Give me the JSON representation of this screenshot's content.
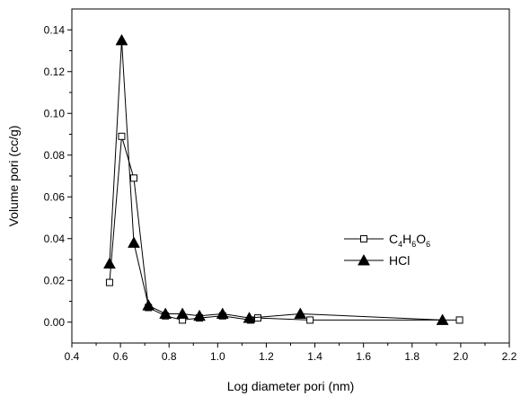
{
  "chart_data": {
    "type": "line",
    "xlabel": "Log diameter pori (nm)",
    "ylabel": "Volume pori (cc/g)",
    "xlim": [
      0.4,
      2.2
    ],
    "ylim": [
      -0.01,
      0.15
    ],
    "xticks": [
      0.4,
      0.6,
      0.8,
      1.0,
      1.2,
      1.4,
      1.6,
      1.8,
      2.0,
      2.2
    ],
    "xtick_labels": [
      "0.4",
      "0.6",
      "0.8",
      "1.0",
      "1.2",
      "1.4",
      "1.6",
      "1.8",
      "2.0",
      "2.2"
    ],
    "yticks": [
      0.0,
      0.02,
      0.04,
      0.06,
      0.08,
      0.1,
      0.12,
      0.14
    ],
    "ytick_labels": [
      "0.00",
      "0.02",
      "0.04",
      "0.06",
      "0.08",
      "0.10",
      "0.12",
      "0.14"
    ],
    "grid": false,
    "legend_position": "right-middle",
    "series": [
      {
        "name_parts": [
          "C",
          "4",
          "H",
          "6",
          "O",
          "6"
        ],
        "marker": "open-square",
        "x": [
          0.555,
          0.605,
          0.655,
          0.715,
          0.785,
          0.855,
          0.925,
          1.02,
          1.135,
          1.165,
          1.38,
          1.995
        ],
        "y": [
          0.019,
          0.089,
          0.069,
          0.007,
          0.003,
          0.001,
          0.002,
          0.003,
          0.001,
          0.002,
          0.001,
          0.001
        ]
      },
      {
        "name": "HCl",
        "marker": "filled-triangle",
        "x": [
          0.555,
          0.605,
          0.655,
          0.715,
          0.785,
          0.855,
          0.925,
          1.02,
          1.13,
          1.34,
          1.925
        ],
        "y": [
          0.028,
          0.135,
          0.038,
          0.008,
          0.004,
          0.004,
          0.003,
          0.004,
          0.002,
          0.004,
          0.001
        ]
      }
    ]
  }
}
